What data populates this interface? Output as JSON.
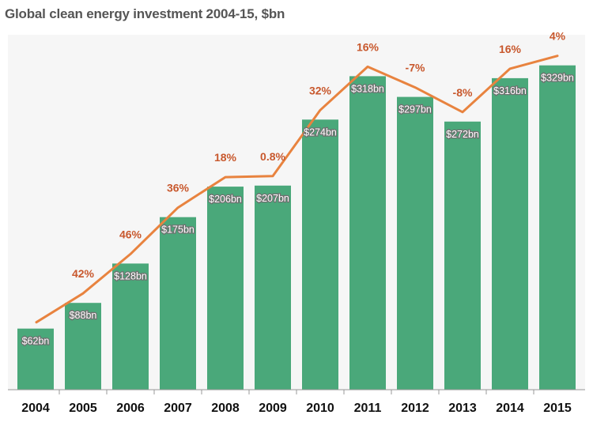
{
  "chart_data": {
    "type": "bar",
    "title": "Global clean energy investment 2004-15, $bn",
    "categories": [
      "2004",
      "2005",
      "2006",
      "2007",
      "2008",
      "2009",
      "2010",
      "2011",
      "2012",
      "2013",
      "2014",
      "2015"
    ],
    "values": [
      62,
      88,
      128,
      175,
      206,
      207,
      274,
      318,
      297,
      272,
      316,
      329
    ],
    "value_labels": [
      "$62bn",
      "$88bn",
      "$128bn",
      "$175bn",
      "$206bn",
      "$207bn",
      "$274bn",
      "$318bn",
      "$297bn",
      "$272bn",
      "$316bn",
      "$329bn"
    ],
    "growth_labels": [
      "",
      "42%",
      "46%",
      "36%",
      "18%",
      "0.8%",
      "32%",
      "16%",
      "-7%",
      "-8%",
      "16%",
      "4%"
    ],
    "ylim": [
      0,
      360
    ],
    "grid": false,
    "legend": "none",
    "colors": {
      "bar": "#4aa87a",
      "line": "#e8833f",
      "growth_label": "#c8582d",
      "plot_background": "#f6f6f6",
      "title": "#555555"
    }
  }
}
